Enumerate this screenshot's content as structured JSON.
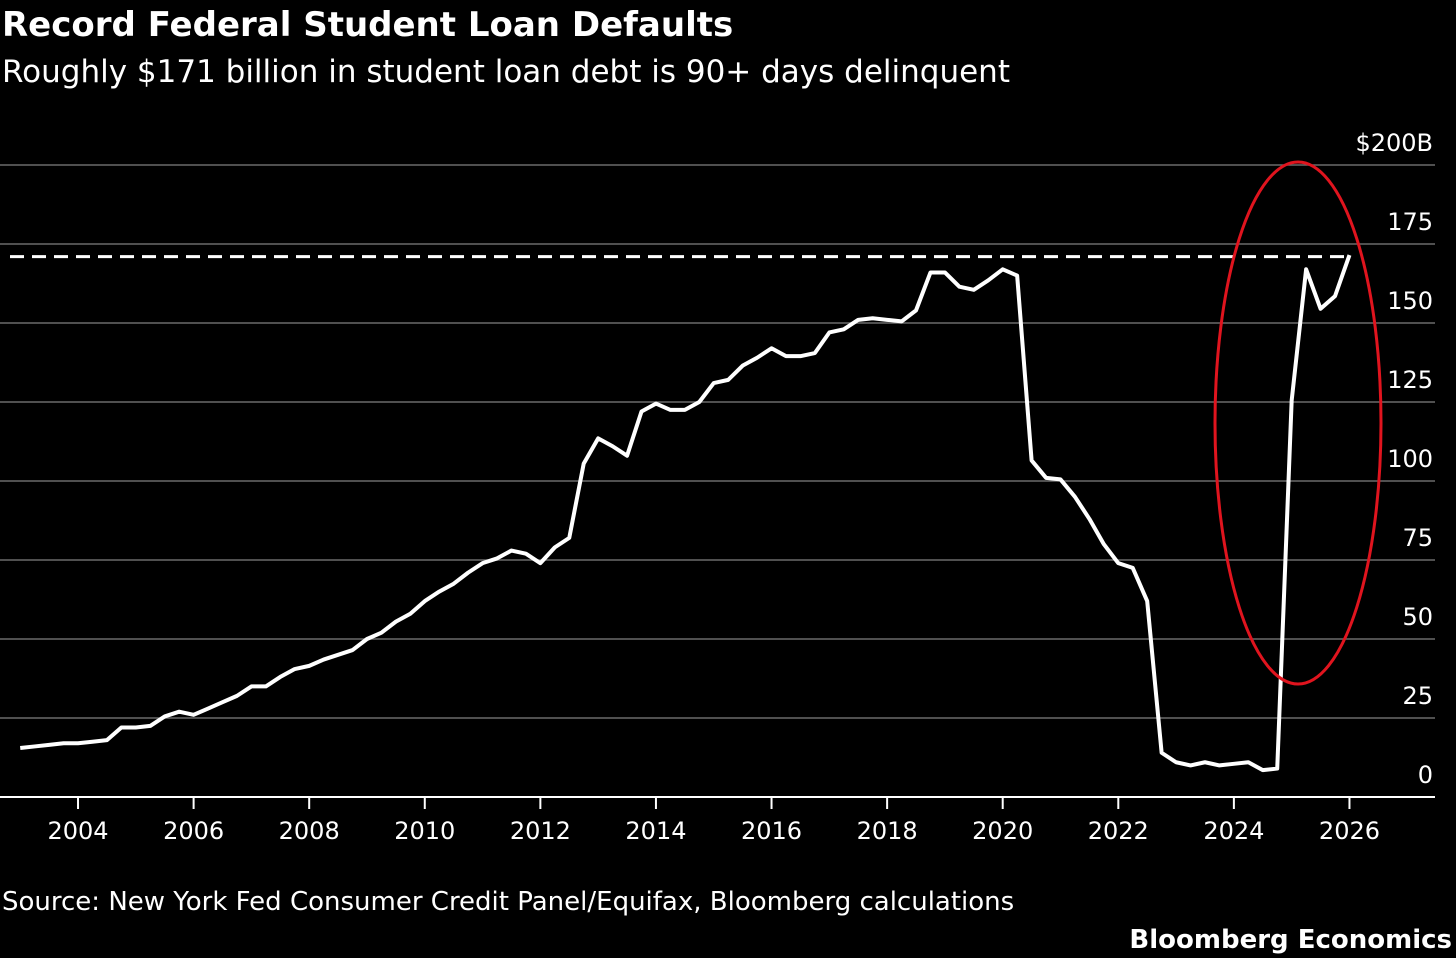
{
  "chart_data": {
    "type": "line",
    "title": "Record Federal Student Loan Defaults",
    "subtitle": "Roughly $171 billion in student loan debt is 90+ days delinquent",
    "source": "Source: New York Fed Consumer Credit Panel/Equifax, Bloomberg calculations",
    "brand": "Bloomberg Economics",
    "x": [
      2003,
      2003.25,
      2003.5,
      2003.75,
      2004,
      2004.25,
      2004.5,
      2004.75,
      2005,
      2005.25,
      2005.5,
      2005.75,
      2006,
      2006.25,
      2006.5,
      2006.75,
      2007,
      2007.25,
      2007.5,
      2007.75,
      2008,
      2008.25,
      2008.5,
      2008.75,
      2009,
      2009.25,
      2009.5,
      2009.75,
      2010,
      2010.25,
      2010.5,
      2010.75,
      2011,
      2011.25,
      2011.5,
      2011.75,
      2012,
      2012.25,
      2012.5,
      2012.75,
      2013,
      2013.25,
      2013.5,
      2013.75,
      2014,
      2014.25,
      2014.5,
      2014.75,
      2015,
      2015.25,
      2015.5,
      2015.75,
      2016,
      2016.25,
      2016.5,
      2016.75,
      2017,
      2017.25,
      2017.5,
      2017.75,
      2018,
      2018.25,
      2018.5,
      2018.75,
      2019,
      2019.25,
      2019.5,
      2019.75,
      2020,
      2020.25,
      2020.5,
      2020.75,
      2021,
      2021.25,
      2021.5,
      2021.75,
      2022,
      2022.25,
      2022.5,
      2022.75,
      2023,
      2023.25,
      2023.5,
      2023.75,
      2024,
      2024.25,
      2024.5,
      2024.75,
      2025,
      2025.25,
      2025.5,
      2025.75,
      2026
    ],
    "series": [
      {
        "name": "90+ days delinquent",
        "color": "#ffffff",
        "values": [
          15.5,
          16,
          16.5,
          17,
          17,
          17.5,
          18,
          22,
          22,
          22.5,
          25.5,
          27,
          26,
          28,
          30,
          32,
          35,
          35,
          38,
          40.5,
          41.5,
          43.5,
          45,
          46.5,
          50,
          52,
          55.5,
          58,
          62,
          65,
          67.5,
          71,
          74,
          75.5,
          78,
          77,
          74,
          79,
          82,
          105.5,
          113.5,
          111,
          108,
          122,
          124.5,
          122.5,
          122.5,
          125,
          131,
          132,
          136.5,
          139,
          142,
          139.5,
          139.5,
          140.5,
          147,
          148,
          151,
          151.5,
          151,
          150.5,
          154,
          166,
          166,
          161.5,
          160.5,
          163.5,
          167,
          165,
          106.5,
          101,
          100.5,
          95,
          88,
          80,
          74,
          72.5,
          62,
          14,
          11,
          10,
          11,
          10,
          10.5,
          11,
          8.5,
          9,
          125.5,
          167,
          154.5,
          158.5,
          171.5
        ]
      }
    ],
    "reference_line": 171,
    "xlim": [
      2002.65,
      2027.48
    ],
    "xticks": [
      2004,
      2006,
      2008,
      2010,
      2012,
      2014,
      2016,
      2018,
      2020,
      2022,
      2024,
      2026
    ],
    "ylim": [
      0,
      200
    ],
    "yticks": [
      0,
      25,
      50,
      75,
      100,
      125,
      150,
      175,
      {
        "value": 200,
        "label": "$200B"
      }
    ],
    "grid": true
  }
}
